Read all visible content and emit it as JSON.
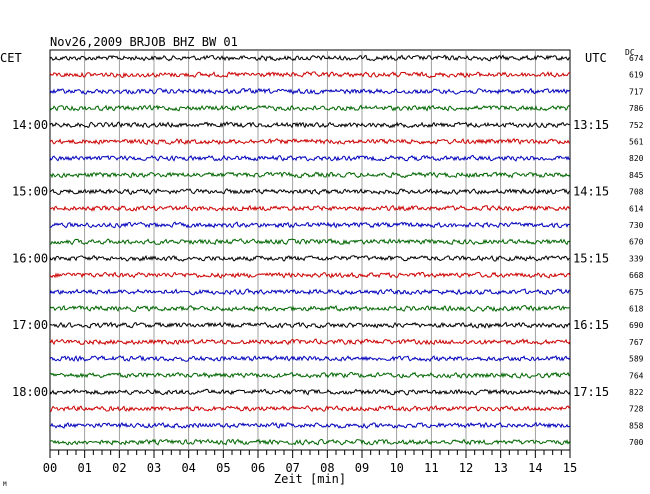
{
  "chart_data": {
    "type": "line",
    "title": "Nov26,2009   BRJOB BHZ BW 01",
    "left_timezone": "CET",
    "right_timezone": "UTC",
    "dc_label": "DC",
    "xlabel": "Zeit [min]",
    "xlim": [
      0,
      15
    ],
    "x_ticks": [
      "00",
      "01",
      "02",
      "03",
      "04",
      "05",
      "06",
      "07",
      "08",
      "09",
      "10",
      "11",
      "12",
      "13",
      "14",
      "15"
    ],
    "minutes_per_trace": 15,
    "trace_colors": [
      "#000000",
      "#cc0000",
      "#0000bb",
      "#006600"
    ],
    "left_time_labels": [
      {
        "trace": 4,
        "text": "14:00"
      },
      {
        "trace": 8,
        "text": "15:00"
      },
      {
        "trace": 12,
        "text": "16:00"
      },
      {
        "trace": 16,
        "text": "17:00"
      },
      {
        "trace": 20,
        "text": "18:00"
      }
    ],
    "right_time_labels": [
      {
        "trace": 4,
        "text": "13:15"
      },
      {
        "trace": 8,
        "text": "14:15"
      },
      {
        "trace": 12,
        "text": "15:15"
      },
      {
        "trace": 16,
        "text": "16:15"
      },
      {
        "trace": 20,
        "text": "17:15"
      }
    ],
    "dc_values": [
      "674",
      "619",
      "717",
      "786",
      "752",
      "561",
      "820",
      "845",
      "708",
      "614",
      "730",
      "670",
      "339",
      "668",
      "675",
      "618",
      "690",
      "767",
      "589",
      "764",
      "822",
      "728",
      "858",
      "700"
    ],
    "footnote": "M"
  }
}
